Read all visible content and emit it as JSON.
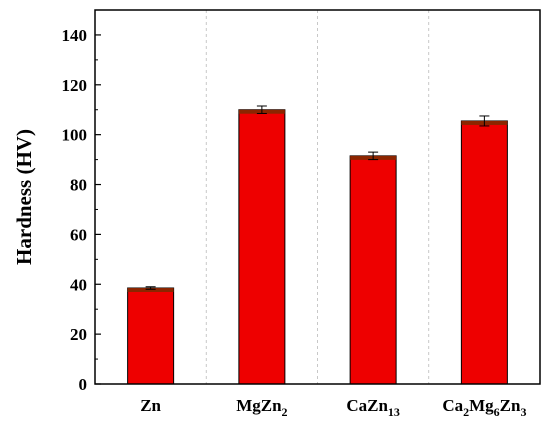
{
  "chart_data": {
    "type": "bar",
    "title": "",
    "xlabel": "",
    "ylabel": "Hardness (HV)",
    "ylim": [
      0,
      150
    ],
    "yticks": [
      0,
      20,
      40,
      60,
      80,
      100,
      120,
      140
    ],
    "grid": "vertical dashed between categories",
    "categories": [
      {
        "base": "Zn",
        "parts": [
          {
            "t": "Zn",
            "sub": ""
          }
        ]
      },
      {
        "base": "MgZn2",
        "parts": [
          {
            "t": "MgZn",
            "sub": "2"
          }
        ]
      },
      {
        "base": "CaZn13",
        "parts": [
          {
            "t": "CaZn",
            "sub": "13"
          }
        ]
      },
      {
        "base": "Ca2Mg6Zn3",
        "parts": [
          {
            "t": "Ca",
            "sub": "2"
          },
          {
            "t": "Mg",
            "sub": "6"
          },
          {
            "t": "Zn",
            "sub": "3"
          }
        ]
      }
    ],
    "values": [
      38.5,
      110,
      91.5,
      105.5
    ],
    "errors": [
      0.5,
      1.5,
      1.5,
      2.0
    ],
    "colors": {
      "bar": "#ee0000",
      "cap": "#8b2500",
      "edge": "#000000",
      "grid": "#bbbbbb"
    }
  }
}
